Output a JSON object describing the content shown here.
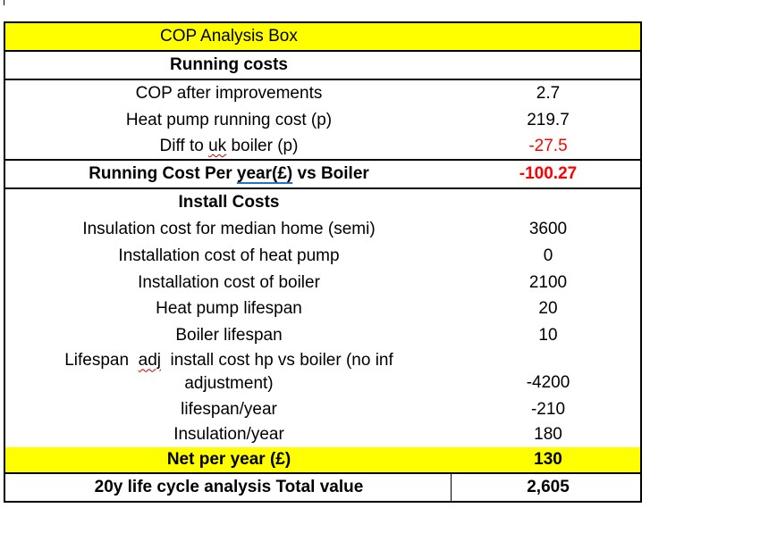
{
  "title": "COP Analysis Box",
  "running_costs": {
    "heading": "Running costs",
    "rows": [
      {
        "label": "COP after improvements",
        "value": "2.7"
      },
      {
        "label": "Heat pump running cost (p)",
        "value": "219.7"
      },
      {
        "label_pre": "Diff to ",
        "label_flag": "uk",
        "label_post": " boiler (p)",
        "value": "-27.5"
      }
    ],
    "summary": {
      "label_pre": "Running Cost Per ",
      "label_flag": "year(£)",
      "label_post": " vs Boiler",
      "value": "-100.27"
    }
  },
  "install_costs": {
    "heading": "Install Costs",
    "rows": [
      {
        "label": "Insulation cost for median home (semi)",
        "value": "3600"
      },
      {
        "label": "Installation cost of heat pump",
        "value": "0"
      },
      {
        "label": "Installation cost of boiler",
        "value": "2100"
      },
      {
        "label": "Heat pump lifespan",
        "value": "20"
      },
      {
        "label": "Boiler lifespan",
        "value": "10"
      },
      {
        "label_l1_pre": "Lifespan ",
        "label_l1_flag": "adj",
        "label_l1_post": " install cost hp vs boiler (no inf",
        "label_l2": "adjustment)",
        "value": "-4200"
      },
      {
        "label": "lifespan/year",
        "value": "-210"
      },
      {
        "label": "Insulation/year",
        "value": "180"
      }
    ]
  },
  "net": {
    "label": "Net per year (£)",
    "value": "130"
  },
  "lifecycle": {
    "label": "20y life cycle analysis Total value",
    "value": "2,605"
  },
  "colors": {
    "highlight": "#ffff00",
    "negative": "#ff0000"
  }
}
